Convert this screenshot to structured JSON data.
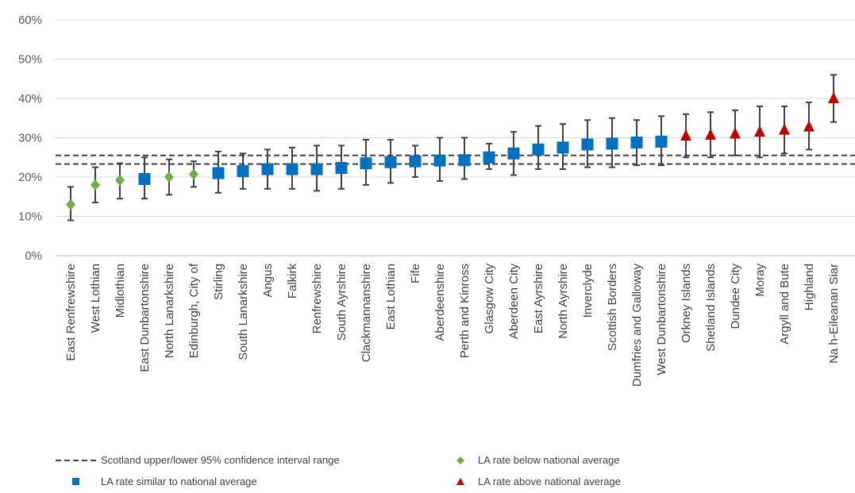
{
  "chart_data": {
    "type": "scatter",
    "ylim": [
      0,
      60
    ],
    "yticks": [
      "0%",
      "10%",
      "20%",
      "30%",
      "40%",
      "50%",
      "60%"
    ],
    "ytick_values": [
      0,
      10,
      20,
      30,
      40,
      50,
      60
    ],
    "grid": true,
    "confidence_interval": {
      "lower": 23.3,
      "upper": 25.5
    },
    "categories": [
      "East Renfrewshire",
      "West Lothian",
      "Midlothian",
      "East Dunbartonshire",
      "North Lanarkshire",
      "Edinburgh, City of",
      "Stirling",
      "South Lanarkshire",
      "Angus",
      "Falkirk",
      "Renfrewshire",
      "South Ayrshire",
      "Clackmannanshire",
      "East Lothian",
      "Fife",
      "Aberdeenshire",
      "Perth and Kinross",
      "Glasgow City",
      "Aberdeen City",
      "East Ayrshire",
      "North Ayrshire",
      "Inverclyde",
      "Scottish Borders",
      "Dumfries and Galloway",
      "West Dunbartonshire",
      "Orkney Islands",
      "Shetland Islands",
      "Dundee City",
      "Moray",
      "Argyll and Bute",
      "Highland",
      "Na h-Eileanan Siar"
    ],
    "values": [
      13.0,
      18.0,
      19.2,
      19.5,
      20.0,
      20.7,
      21.0,
      21.5,
      22.0,
      22.0,
      22.0,
      22.3,
      23.5,
      23.8,
      24.0,
      24.2,
      24.3,
      25.0,
      26.0,
      27.0,
      27.5,
      28.3,
      28.5,
      28.8,
      29.0,
      30.5,
      30.7,
      31.0,
      31.5,
      32.0,
      32.8,
      40.0
    ],
    "lower": [
      9.0,
      13.5,
      14.5,
      14.5,
      15.5,
      17.5,
      16.0,
      17.0,
      17.0,
      17.0,
      16.5,
      17.0,
      18.0,
      18.5,
      20.0,
      19.0,
      19.5,
      22.0,
      20.5,
      22.0,
      22.0,
      22.5,
      22.5,
      23.0,
      23.0,
      25.0,
      25.0,
      25.5,
      25.0,
      26.0,
      27.0,
      34.0
    ],
    "upper": [
      17.5,
      22.5,
      23.5,
      25.0,
      24.5,
      24.0,
      26.5,
      26.0,
      27.0,
      27.5,
      28.0,
      28.0,
      29.5,
      29.5,
      28.0,
      30.0,
      30.0,
      28.5,
      31.5,
      33.0,
      33.5,
      34.5,
      35.0,
      34.5,
      35.5,
      36.0,
      36.5,
      37.0,
      38.0,
      38.0,
      39.0,
      46.0
    ],
    "groups": [
      "below",
      "below",
      "below",
      "similar",
      "below",
      "below",
      "similar",
      "similar",
      "similar",
      "similar",
      "similar",
      "similar",
      "similar",
      "similar",
      "similar",
      "similar",
      "similar",
      "similar",
      "similar",
      "similar",
      "similar",
      "similar",
      "similar",
      "similar",
      "similar",
      "above",
      "above",
      "above",
      "above",
      "above",
      "above",
      "above"
    ],
    "legend": {
      "ci": "Scotland upper/lower 95% confidence interval range",
      "similar": "LA rate similar to national average",
      "below": "LA rate below national average",
      "above": "LA rate above national average"
    },
    "legend_placement": "bottom",
    "colors": {
      "below": "#70ad47",
      "similar": "#0070c0",
      "above": "#c00000",
      "errorbar": "#404040",
      "grid": "#d9d9d9",
      "ci_line": "#404040"
    }
  }
}
